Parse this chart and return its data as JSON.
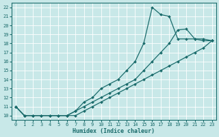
{
  "xlabel": "Humidex (Indice chaleur)",
  "ylabel": "",
  "bg_color": "#c8e8e8",
  "line_color": "#1a6b6b",
  "xlim": [
    -0.5,
    23.5
  ],
  "ylim": [
    9.5,
    22.5
  ],
  "xticks": [
    0,
    1,
    2,
    3,
    4,
    5,
    6,
    7,
    8,
    9,
    10,
    11,
    12,
    13,
    14,
    15,
    16,
    17,
    18,
    19,
    20,
    21,
    22,
    23
  ],
  "yticks": [
    10,
    11,
    12,
    13,
    14,
    15,
    16,
    17,
    18,
    19,
    20,
    21,
    22
  ],
  "lines": [
    {
      "x": [
        0,
        1,
        2,
        3,
        4,
        5,
        6,
        7,
        8,
        9,
        10,
        11,
        12,
        13,
        14,
        15,
        16,
        17,
        18,
        19,
        20,
        21,
        22,
        23
      ],
      "y": [
        11,
        10,
        10,
        10,
        10,
        10,
        10,
        10.5,
        11.5,
        12,
        13,
        13.5,
        14,
        15,
        16,
        18,
        22,
        21.2,
        21.0,
        18.5,
        18.5,
        18.5,
        18.3,
        18.3
      ]
    },
    {
      "x": [
        0,
        1,
        2,
        3,
        4,
        5,
        6,
        7,
        8,
        9,
        10,
        11,
        12,
        13,
        14,
        15,
        16,
        17,
        18,
        19,
        20,
        21,
        22,
        23
      ],
      "y": [
        11,
        10,
        10,
        10,
        10,
        10,
        10,
        10.5,
        11,
        11.5,
        12,
        12.5,
        13,
        13.5,
        14,
        15,
        16,
        17,
        18,
        19.5,
        19.6,
        18.5,
        18.5,
        18.3
      ]
    },
    {
      "x": [
        0,
        1,
        2,
        3,
        4,
        5,
        6,
        7,
        8,
        9,
        10,
        11,
        12,
        13,
        14,
        15,
        16,
        17,
        18,
        19,
        20,
        21,
        22,
        23
      ],
      "y": [
        11,
        10,
        10,
        10,
        10,
        10,
        10,
        10,
        10.5,
        11,
        11.5,
        12,
        12.5,
        13,
        13.5,
        14,
        14.5,
        15,
        15.5,
        16,
        16.5,
        17,
        17.5,
        18.3
      ]
    }
  ]
}
